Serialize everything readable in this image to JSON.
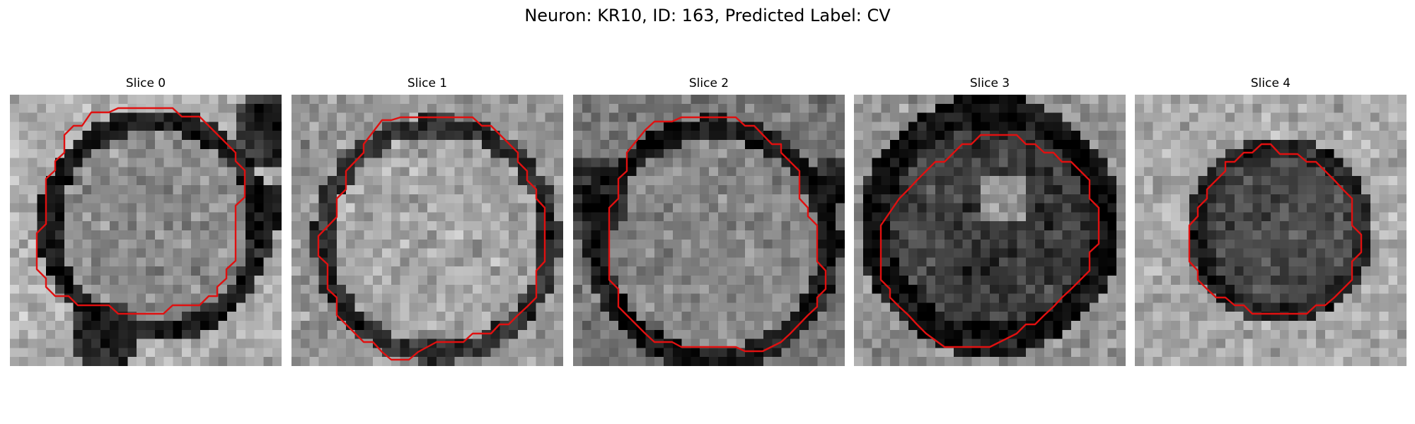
{
  "figure": {
    "title": "Neuron: KR10, ID: 163, Predicted Label: CV",
    "contour_color": "#e01010"
  },
  "slices": [
    {
      "title": "Slice 0"
    },
    {
      "title": "Slice 1"
    },
    {
      "title": "Slice 2"
    },
    {
      "title": "Slice 3"
    },
    {
      "title": "Slice 4"
    }
  ]
}
